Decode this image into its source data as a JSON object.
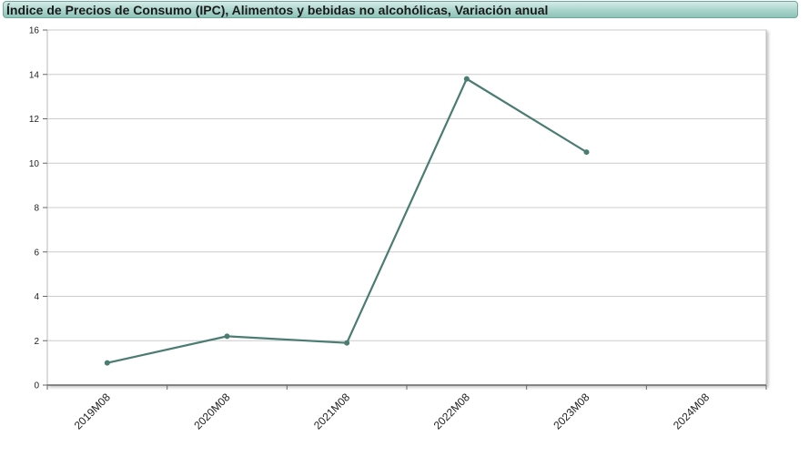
{
  "chart_data": {
    "type": "line",
    "title": "Índice de Precios de Consumo (IPC), Alimentos y bebidas no alcohólicas, Variación anual",
    "categories": [
      "2019M08",
      "2020M08",
      "2021M08",
      "2022M08",
      "2023M08",
      "2024M08"
    ],
    "series": [
      {
        "values": [
          1.0,
          2.2,
          1.9,
          13.8,
          10.5,
          null
        ]
      }
    ],
    "yticks": [
      "0",
      "2",
      "4",
      "6",
      "8",
      "10",
      "12",
      "14",
      "16"
    ],
    "ylim": [
      0,
      16
    ],
    "xlabel": "",
    "ylabel": "",
    "grid": true,
    "line_color": "#4a7c72",
    "grid_color": "#cccccc"
  }
}
